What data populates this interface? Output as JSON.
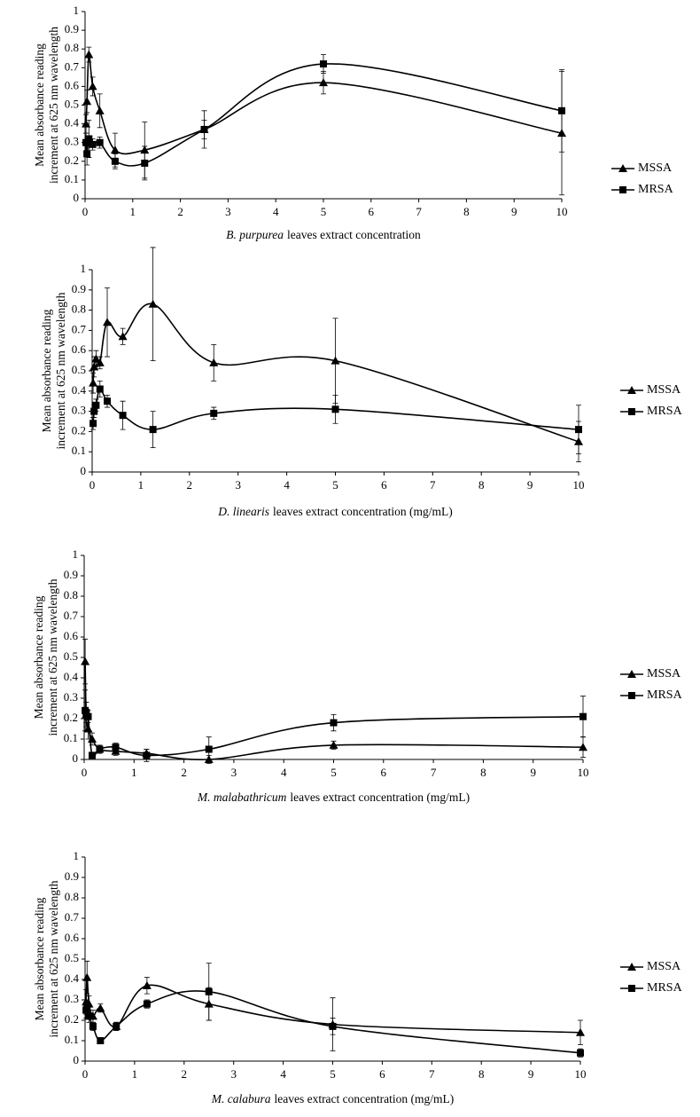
{
  "chart_data": [
    {
      "type": "line",
      "ylabel": [
        "Mean absorbance reading",
        "increment at 625 nm wavelength"
      ],
      "xlabel_italic": "B. purpurea",
      "xlabel_rest": "leaves extract concentration",
      "x": [
        0.02,
        0.04,
        0.08,
        0.16,
        0.31,
        0.63,
        1.25,
        2.5,
        5,
        10
      ],
      "xlim": [
        0,
        10
      ],
      "xticks": [
        0,
        1,
        2,
        3,
        4,
        5,
        6,
        7,
        8,
        9,
        10
      ],
      "ylim": [
        0,
        1
      ],
      "yticks": [
        0,
        0.1,
        0.2,
        0.3,
        0.4,
        0.5,
        0.6,
        0.7,
        0.8,
        0.9,
        1
      ],
      "series": [
        {
          "name": "MSSA",
          "color": "#000000",
          "marker": "triangle",
          "values": [
            0.4,
            0.52,
            0.77,
            0.6,
            0.47,
            0.26,
            0.26,
            0.37,
            0.62,
            0.35
          ],
          "errors": [
            0.05,
            0.06,
            0.04,
            0.05,
            0.09,
            0.09,
            0.15,
            0.1,
            0.06,
            0.33
          ]
        },
        {
          "name": "MRSA",
          "color": "#000000",
          "marker": "square",
          "values": [
            0.3,
            0.24,
            0.32,
            0.29,
            0.3,
            0.2,
            0.19,
            0.37,
            0.72,
            0.47
          ],
          "errors": [
            0.05,
            0.06,
            0.1,
            0.03,
            0.03,
            0.04,
            0.09,
            0.05,
            0.05,
            0.22
          ]
        }
      ]
    },
    {
      "type": "line",
      "ylabel": [
        "Mean absorbance reading",
        "increment at 625 nm wavelength"
      ],
      "xlabel_italic": "D. linearis",
      "xlabel_rest": "leaves extract concentration (mg/mL)",
      "x": [
        0.02,
        0.04,
        0.08,
        0.16,
        0.31,
        0.63,
        1.25,
        2.5,
        5,
        10
      ],
      "xlim": [
        0,
        10
      ],
      "xticks": [
        0,
        1,
        2,
        3,
        4,
        5,
        6,
        7,
        8,
        9,
        10
      ],
      "ylim": [
        0,
        1
      ],
      "yticks": [
        0,
        0.1,
        0.2,
        0.3,
        0.4,
        0.5,
        0.6,
        0.7,
        0.8,
        0.9,
        1
      ],
      "series": [
        {
          "name": "MSSA",
          "color": "#000000",
          "marker": "triangle",
          "values": [
            0.44,
            0.52,
            0.56,
            0.54,
            0.74,
            0.67,
            0.83,
            0.54,
            0.55,
            0.15
          ],
          "errors": [
            0.05,
            0.05,
            0.04,
            0.03,
            0.17,
            0.04,
            0.28,
            0.09,
            0.21,
            0.1
          ]
        },
        {
          "name": "MRSA",
          "color": "#000000",
          "marker": "square",
          "values": [
            0.24,
            0.3,
            0.33,
            0.41,
            0.35,
            0.28,
            0.21,
            0.29,
            0.31,
            0.21
          ],
          "errors": [
            0.03,
            0.03,
            0.03,
            0.04,
            0.03,
            0.07,
            0.09,
            0.03,
            0.07,
            0.12
          ]
        }
      ]
    },
    {
      "type": "line",
      "ylabel": [
        "Mean absorbance reading",
        "increment at 625 nm wavelength"
      ],
      "xlabel_italic": "M. malabathricum",
      "xlabel_rest": "leaves extract concentration (mg/mL)",
      "x": [
        0.02,
        0.04,
        0.08,
        0.16,
        0.31,
        0.63,
        1.25,
        2.5,
        5,
        10
      ],
      "xlim": [
        0,
        10
      ],
      "xticks": [
        0,
        1,
        2,
        3,
        4,
        5,
        6,
        7,
        8,
        9,
        10
      ],
      "ylim": [
        0,
        1
      ],
      "yticks": [
        0,
        0.1,
        0.2,
        0.3,
        0.4,
        0.5,
        0.6,
        0.7,
        0.8,
        0.9,
        1
      ],
      "series": [
        {
          "name": "MSSA",
          "color": "#000000",
          "marker": "triangle",
          "values": [
            0.48,
            0.22,
            0.15,
            0.1,
            0.05,
            0.04,
            0.03,
            0.0,
            0.07,
            0.06
          ],
          "errors": [
            0.11,
            0.06,
            0.05,
            0.03,
            0.02,
            0.02,
            0.02,
            0.02,
            0.02,
            0.05
          ]
        },
        {
          "name": "MRSA",
          "color": "#000000",
          "marker": "square",
          "values": [
            0.24,
            0.23,
            0.21,
            0.02,
            0.05,
            0.06,
            0.02,
            0.05,
            0.18,
            0.21
          ],
          "errors": [
            0.1,
            0.05,
            0.03,
            0.01,
            0.02,
            0.02,
            0.03,
            0.06,
            0.04,
            0.1
          ]
        }
      ]
    },
    {
      "type": "line",
      "ylabel": [
        "Mean absorbance reading",
        "increment at 625 nm wavelength"
      ],
      "xlabel_italic": "M. calabura",
      "xlabel_rest": "leaves extract concentration (mg/mL)",
      "x": [
        0.02,
        0.04,
        0.08,
        0.16,
        0.31,
        0.63,
        1.25,
        2.5,
        5,
        10
      ],
      "xlim": [
        0,
        10
      ],
      "xticks": [
        0,
        1,
        2,
        3,
        4,
        5,
        6,
        7,
        8,
        9,
        10
      ],
      "ylim": [
        0,
        1
      ],
      "yticks": [
        0,
        0.1,
        0.2,
        0.3,
        0.4,
        0.5,
        0.6,
        0.7,
        0.8,
        0.9,
        1
      ],
      "series": [
        {
          "name": "MSSA",
          "color": "#000000",
          "marker": "triangle",
          "values": [
            0.29,
            0.41,
            0.28,
            0.22,
            0.26,
            0.17,
            0.37,
            0.28,
            0.18,
            0.14
          ],
          "errors": [
            0.06,
            0.08,
            0.04,
            0.03,
            0.02,
            0.02,
            0.04,
            0.08,
            0.13,
            0.06
          ]
        },
        {
          "name": "MRSA",
          "color": "#000000",
          "marker": "square",
          "values": [
            0.25,
            0.27,
            0.22,
            0.17,
            0.1,
            0.17,
            0.28,
            0.34,
            0.17,
            0.04
          ],
          "errors": [
            0.04,
            0.03,
            0.03,
            0.02,
            0.01,
            0.02,
            0.02,
            0.14,
            0.04,
            0.02
          ]
        }
      ]
    }
  ]
}
